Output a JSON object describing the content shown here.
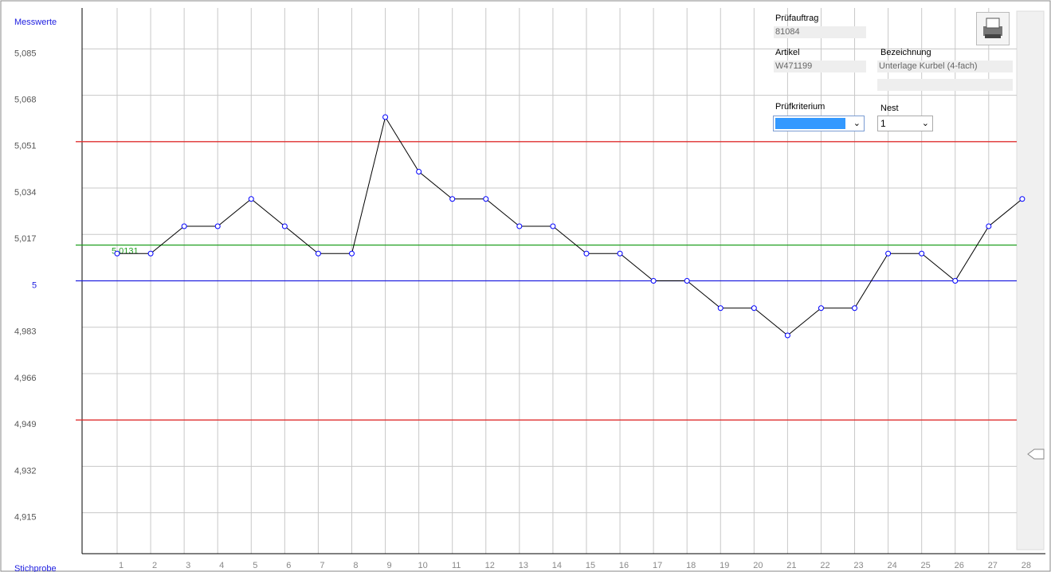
{
  "chart_data": {
    "type": "line",
    "y_label": "Messwerte",
    "x_label": "Stichprobe",
    "categories": [
      "1",
      "2",
      "3",
      "4",
      "5",
      "6",
      "7",
      "8",
      "9",
      "10",
      "11",
      "12",
      "13",
      "14",
      "15",
      "16",
      "17",
      "18",
      "19",
      "20",
      "21",
      "22",
      "23",
      "24",
      "25",
      "26",
      "27",
      "28"
    ],
    "series": [
      {
        "color": "#000000",
        "marker_color": "#0000ff",
        "values": [
          5.01,
          5.01,
          5.02,
          5.02,
          5.03,
          5.02,
          5.01,
          5.01,
          5.06,
          5.04,
          5.03,
          5.03,
          5.02,
          5.02,
          5.01,
          5.01,
          5.0,
          5.0,
          4.99,
          4.99,
          4.98,
          4.99,
          4.99,
          5.01,
          5.01,
          5.0,
          5.02,
          5.03
        ]
      }
    ],
    "ylim": [
      4.9,
      5.1
    ],
    "yticks": [
      {
        "value": 4.915,
        "label": "4,915"
      },
      {
        "value": 4.932,
        "label": "4,932"
      },
      {
        "value": 4.949,
        "label": "4,949"
      },
      {
        "value": 4.966,
        "label": "4,966"
      },
      {
        "value": 4.983,
        "label": "4,983"
      },
      5,
      {
        "value": 5.017,
        "label": "5,017"
      },
      {
        "value": 5.034,
        "label": "5,034"
      },
      {
        "value": 5.051,
        "label": "5,051"
      },
      {
        "value": 5.068,
        "label": "5,068"
      },
      {
        "value": 5.085,
        "label": "5,085"
      }
    ],
    "grid": true,
    "reference_lines": [
      {
        "value": 5.051,
        "color": "#e03030"
      },
      {
        "value": 4.949,
        "color": "#e03030"
      },
      {
        "value": 5,
        "color": "#2020e0"
      },
      {
        "value": 5.0131,
        "label": "5,0131",
        "color": "#20a020"
      }
    ]
  },
  "panel": {
    "order_label": "Prüfauftrag",
    "order": "81084",
    "article_label": "Artikel",
    "article": "W471199",
    "description_label": "Bezeichnung",
    "description": "Unterlage Kurbel (4-fach)",
    "criterion_label": "Prüfkriterium",
    "nest_label": "Nest",
    "nest": "1"
  }
}
